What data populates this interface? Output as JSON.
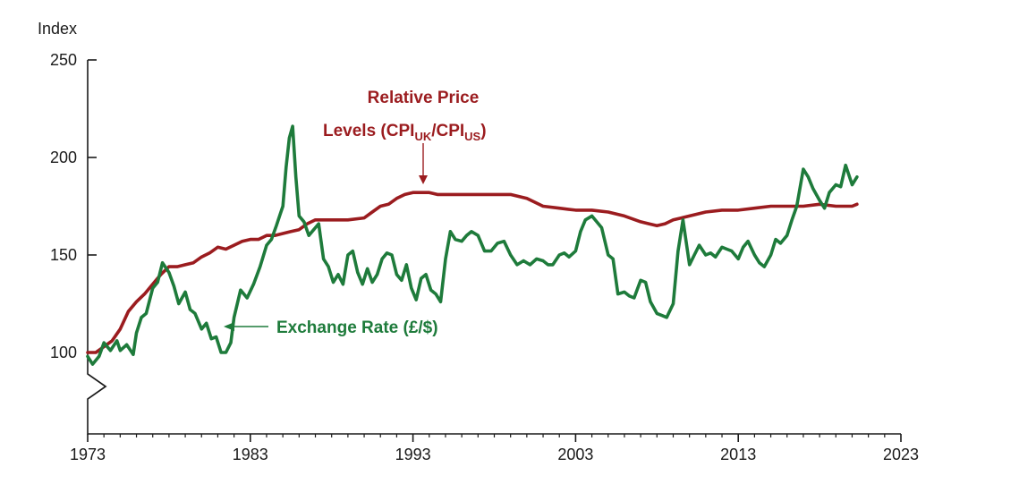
{
  "chart_data": {
    "type": "line",
    "ylabel": "Index",
    "xlim": [
      1973,
      2023
    ],
    "ylim": [
      50,
      250
    ],
    "x_ticks": [
      "1973",
      "1983",
      "1993",
      "2003",
      "2013",
      "2023"
    ],
    "y_ticks": [
      "100",
      "150",
      "200",
      "250"
    ],
    "axis_break": true,
    "grid": false,
    "annotations": {
      "relative_price": {
        "line1": "Relative Price",
        "line2_prefix": "Levels (CPI",
        "sub1": "UK",
        "mid": "/CPI",
        "sub2": "US",
        "suffix": ")"
      },
      "exchange_rate": "Exchange Rate (£/$)"
    },
    "colors": {
      "relative_price": "#9b1c1f",
      "exchange_rate": "#1e7b3b",
      "axis": "#1a1a1a"
    },
    "series": [
      {
        "key": "relative_price",
        "x": [
          1973.0,
          1973.5,
          1974.0,
          1974.5,
          1975.0,
          1975.5,
          1976.0,
          1976.5,
          1977.0,
          1977.5,
          1978.0,
          1978.5,
          1979.0,
          1979.5,
          1980.0,
          1980.5,
          1981.0,
          1981.5,
          1982.0,
          1982.5,
          1983.0,
          1983.5,
          1984.0,
          1984.5,
          1985.0,
          1985.5,
          1986.0,
          1986.5,
          1987.0,
          1988.0,
          1989.0,
          1990.0,
          1990.5,
          1991.0,
          1991.5,
          1992.0,
          1992.5,
          1993.0,
          1993.5,
          1994.0,
          1994.5,
          1995.0,
          1996.0,
          1997.0,
          1998.0,
          1999.0,
          2000.0,
          2000.5,
          2001.0,
          2002.0,
          2003.0,
          2004.0,
          2005.0,
          2006.0,
          2007.0,
          2007.5,
          2008.0,
          2008.5,
          2009.0,
          2009.5,
          2010.0,
          2011.0,
          2012.0,
          2013.0,
          2014.0,
          2015.0,
          2016.0,
          2017.0,
          2018.0,
          2019.0,
          2020.0,
          2020.3
        ],
        "y": [
          100,
          100,
          103,
          106,
          112,
          121,
          126,
          130,
          135,
          140,
          144,
          144,
          145,
          146,
          149,
          151,
          154,
          153,
          155,
          157,
          158,
          158,
          160,
          160,
          161,
          162,
          163,
          166,
          168,
          168,
          168,
          169,
          172,
          175,
          176,
          179,
          181,
          182,
          182,
          182,
          181,
          181,
          181,
          181,
          181,
          181,
          179,
          177,
          175,
          174,
          173,
          173,
          172,
          170,
          167,
          166,
          165,
          166,
          168,
          169,
          170,
          172,
          173,
          173,
          174,
          175,
          175,
          175,
          176,
          175,
          175,
          176
        ]
      },
      {
        "key": "exchange_rate",
        "x": [
          1973.0,
          1973.3,
          1973.7,
          1974.0,
          1974.4,
          1974.8,
          1975.0,
          1975.4,
          1975.8,
          1976.0,
          1976.3,
          1976.6,
          1977.0,
          1977.3,
          1977.6,
          1978.0,
          1978.3,
          1978.6,
          1979.0,
          1979.3,
          1979.6,
          1980.0,
          1980.3,
          1980.6,
          1980.9,
          1981.2,
          1981.5,
          1981.8,
          1982.0,
          1982.4,
          1982.8,
          1983.2,
          1983.6,
          1984.0,
          1984.3,
          1984.6,
          1984.8,
          1985.0,
          1985.2,
          1985.4,
          1985.6,
          1985.8,
          1986.0,
          1986.3,
          1986.6,
          1986.9,
          1987.2,
          1987.5,
          1987.8,
          1988.1,
          1988.4,
          1988.7,
          1989.0,
          1989.3,
          1989.6,
          1989.9,
          1990.2,
          1990.5,
          1990.8,
          1991.1,
          1991.4,
          1991.7,
          1992.0,
          1992.3,
          1992.6,
          1992.9,
          1993.2,
          1993.5,
          1993.8,
          1994.1,
          1994.4,
          1994.7,
          1995.0,
          1995.3,
          1995.6,
          1996.0,
          1996.3,
          1996.6,
          1997.0,
          1997.4,
          1997.8,
          1998.2,
          1998.6,
          1999.0,
          1999.4,
          1999.8,
          2000.2,
          2000.6,
          2001.0,
          2001.3,
          2001.6,
          2002.0,
          2002.3,
          2002.6,
          2003.0,
          2003.3,
          2003.6,
          2004.0,
          2004.3,
          2004.6,
          2005.0,
          2005.3,
          2005.6,
          2006.0,
          2006.3,
          2006.6,
          2007.0,
          2007.3,
          2007.6,
          2008.0,
          2008.3,
          2008.6,
          2009.0,
          2009.3,
          2009.6,
          2010.0,
          2010.3,
          2010.6,
          2011.0,
          2011.3,
          2011.6,
          2012.0,
          2012.3,
          2012.6,
          2013.0,
          2013.3,
          2013.6,
          2014.0,
          2014.3,
          2014.6,
          2015.0,
          2015.3,
          2015.6,
          2016.0,
          2016.3,
          2016.6,
          2017.0,
          2017.3,
          2017.6,
          2018.0,
          2018.3,
          2018.6,
          2019.0,
          2019.3,
          2019.6,
          2020.0,
          2020.3
        ],
        "y": [
          98,
          94,
          98,
          105,
          101,
          106,
          101,
          104,
          99,
          110,
          118,
          120,
          133,
          136,
          146,
          141,
          134,
          125,
          131,
          122,
          120,
          112,
          115,
          107,
          108,
          100,
          100,
          105,
          118,
          132,
          128,
          135,
          144,
          155,
          158,
          165,
          170,
          175,
          195,
          210,
          216,
          190,
          170,
          167,
          160,
          163,
          166,
          148,
          144,
          136,
          140,
          135,
          150,
          152,
          141,
          135,
          143,
          136,
          140,
          148,
          151,
          150,
          140,
          137,
          145,
          133,
          127,
          138,
          140,
          132,
          130,
          126,
          148,
          162,
          158,
          157,
          160,
          162,
          160,
          152,
          152,
          156,
          157,
          150,
          145,
          147,
          145,
          148,
          147,
          145,
          145,
          150,
          151,
          149,
          152,
          162,
          168,
          170,
          167,
          164,
          150,
          148,
          130,
          131,
          129,
          128,
          137,
          136,
          126,
          120,
          119,
          118,
          125,
          152,
          168,
          145,
          150,
          155,
          150,
          151,
          149,
          154,
          153,
          152,
          148,
          154,
          157,
          150,
          146,
          144,
          150,
          158,
          156,
          160,
          168,
          175,
          194,
          190,
          184,
          178,
          174,
          182,
          186,
          185,
          196,
          186,
          190
        ]
      }
    ]
  }
}
